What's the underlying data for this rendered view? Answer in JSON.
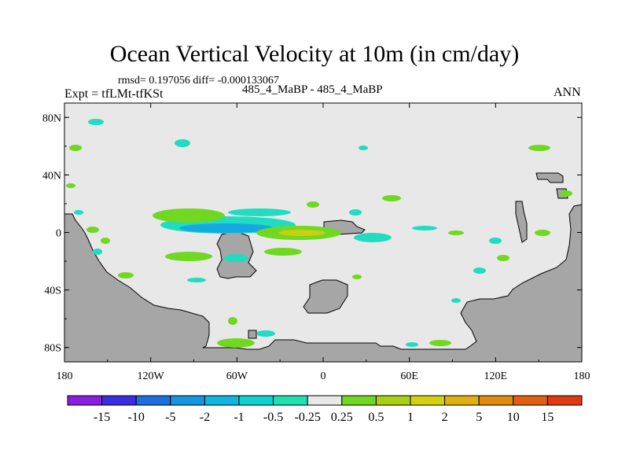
{
  "chart_data": {
    "type": "heatmap",
    "title": "Ocean Vertical Velocity at 10m (in cm/day)",
    "stats_line": "rmsd= 0.197056 diff= -0.000133067",
    "subtitle": "485_4_MaBP - 485_4_MaBP",
    "left_label": "Expt = tfLMt-tfKSt",
    "right_label": "ANN",
    "x_axis": {
      "range": [
        -180,
        180
      ],
      "ticks": [
        {
          "value": -180,
          "label": "180"
        },
        {
          "value": -120,
          "label": "120W"
        },
        {
          "value": -60,
          "label": "60W"
        },
        {
          "value": 0,
          "label": "0"
        },
        {
          "value": 60,
          "label": "60E"
        },
        {
          "value": 120,
          "label": "120E"
        },
        {
          "value": 180,
          "label": "180"
        }
      ]
    },
    "y_axis": {
      "range": [
        -90,
        90
      ],
      "ticks": [
        {
          "value": 80,
          "label": "80N"
        },
        {
          "value": 40,
          "label": "40N"
        },
        {
          "value": 0,
          "label": "0"
        },
        {
          "value": -40,
          "label": "40S"
        },
        {
          "value": -80,
          "label": "80S"
        }
      ]
    },
    "colorbar": {
      "colors": [
        "#8a1ee0",
        "#3a2ee0",
        "#1e6ee0",
        "#1496e0",
        "#10b6e0",
        "#10d0d0",
        "#20e0b0",
        "#e8e8e8",
        "#70d820",
        "#a8d010",
        "#d4d010",
        "#e0b010",
        "#e08a10",
        "#e06010",
        "#e03a10"
      ],
      "labels": [
        "-15",
        "-10",
        "-5",
        "-2",
        "-1",
        "-0.5",
        "-0.25",
        "0.25",
        "0.5",
        "1",
        "2",
        "5",
        "10",
        "15"
      ]
    },
    "colors": {
      "background": "#e8e8e8",
      "land": "#a6a6a6",
      "green": "#70d820",
      "cyan": "#20dcc0",
      "blue": "#16a8e0",
      "yellow": "#c8d010",
      "orange": "#e0a810"
    }
  }
}
